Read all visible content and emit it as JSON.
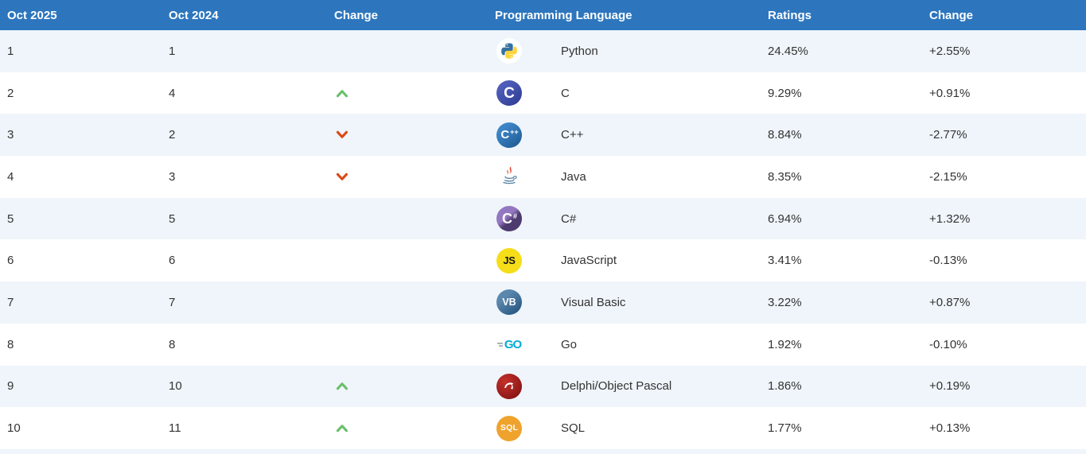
{
  "table": {
    "headers": [
      "Oct 2025",
      "Oct 2024",
      "Change",
      "Programming Language",
      "Ratings",
      "Change"
    ],
    "rows": [
      {
        "rank": "1",
        "rank_prev": "1",
        "change": "",
        "icon": "python-icon",
        "language": "Python",
        "ratings": "24.45%",
        "change_pct": "+2.55%"
      },
      {
        "rank": "2",
        "rank_prev": "4",
        "change": "up",
        "icon": "c-icon",
        "language": "C",
        "ratings": "9.29%",
        "change_pct": "+0.91%"
      },
      {
        "rank": "3",
        "rank_prev": "2",
        "change": "down",
        "icon": "cpp-icon",
        "language": "C++",
        "ratings": "8.84%",
        "change_pct": "-2.77%"
      },
      {
        "rank": "4",
        "rank_prev": "3",
        "change": "down",
        "icon": "java-icon",
        "language": "Java",
        "ratings": "8.35%",
        "change_pct": "-2.15%"
      },
      {
        "rank": "5",
        "rank_prev": "5",
        "change": "",
        "icon": "csharp-icon",
        "language": "C#",
        "ratings": "6.94%",
        "change_pct": "+1.32%"
      },
      {
        "rank": "6",
        "rank_prev": "6",
        "change": "",
        "icon": "javascript-icon",
        "language": "JavaScript",
        "ratings": "3.41%",
        "change_pct": "-0.13%"
      },
      {
        "rank": "7",
        "rank_prev": "7",
        "change": "",
        "icon": "visual-basic-icon",
        "language": "Visual Basic",
        "ratings": "3.22%",
        "change_pct": "+0.87%"
      },
      {
        "rank": "8",
        "rank_prev": "8",
        "change": "",
        "icon": "go-icon",
        "language": "Go",
        "ratings": "1.92%",
        "change_pct": "-0.10%"
      },
      {
        "rank": "9",
        "rank_prev": "10",
        "change": "up",
        "icon": "delphi-icon",
        "language": "Delphi/Object Pascal",
        "ratings": "1.86%",
        "change_pct": "+0.19%"
      },
      {
        "rank": "10",
        "rank_prev": "11",
        "change": "up",
        "icon": "sql-icon",
        "language": "SQL",
        "ratings": "1.77%",
        "change_pct": "+0.13%"
      }
    ]
  },
  "colors": {
    "header_bg": "#2d76be",
    "header_text": "#ffffff",
    "row_stripe": "#eff5fa",
    "row_white": "#ffffff",
    "body_text": "#333333",
    "up_arrow": "#6abf69",
    "down_arrow": "#dd4814"
  }
}
